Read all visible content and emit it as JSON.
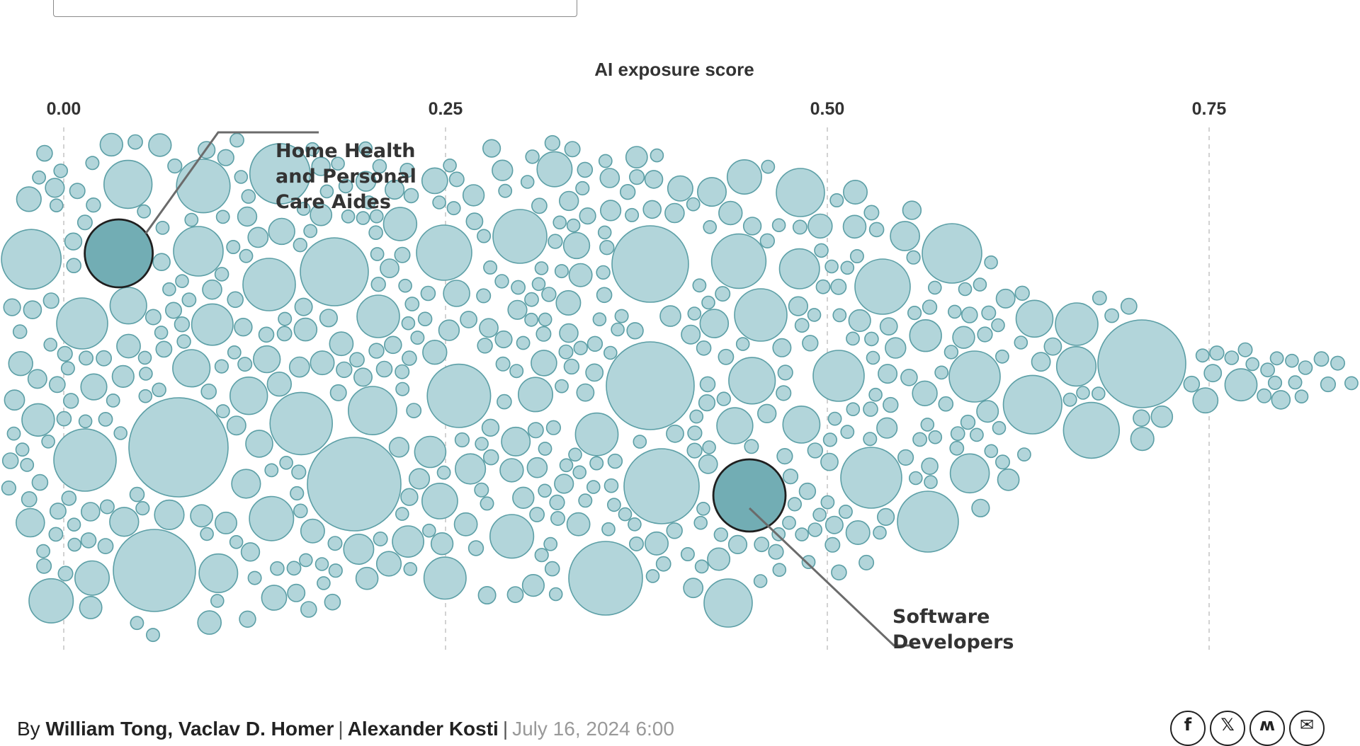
{
  "chart_data": {
    "type": "scatter",
    "title": "",
    "xlabel": "AI exposure score",
    "ylabel": "",
    "xlim": [
      -0.04,
      0.85
    ],
    "xticks": [
      "0.00",
      "0.25",
      "0.50",
      "0.75"
    ],
    "tick_values": [
      0,
      0.25,
      0.5,
      0.75
    ],
    "grid": "dashed vertical lines at ticks",
    "legend": "none",
    "colors": {
      "bubble_fill": "#b2d5da",
      "bubble_stroke": "#5c9fa6",
      "highlight_fill": "#72adb4",
      "highlight_stroke": "#1f1f1f"
    },
    "annotations": [
      {
        "name": "home-health-aides",
        "label_lines": [
          "Home Health",
          "and Personal",
          "Care Aides"
        ],
        "x": 0.036
      },
      {
        "name": "software-developers",
        "label_lines": [
          "Software",
          "Developers"
        ],
        "x": 0.449
      }
    ]
  },
  "byline": {
    "prefix": "By ",
    "author1": "William Tong",
    "conj": ", Vaclav D. Homer",
    "author2": "Alexander Kosti",
    "date": "July 16, 2024 6:00"
  },
  "share": {
    "facebook": "f",
    "x": "𝕏",
    "bluesky": "ʍ",
    "email": "✉"
  }
}
